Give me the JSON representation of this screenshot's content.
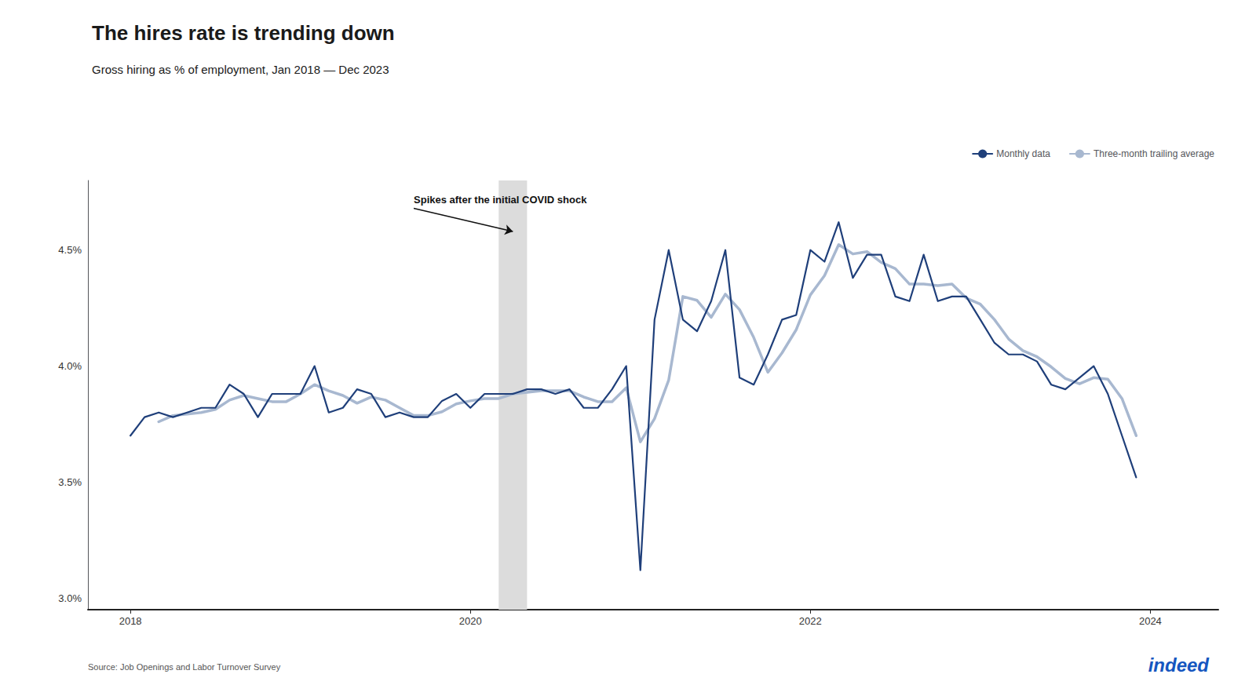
{
  "chart_data": {
    "type": "line",
    "title": "The hires rate is trending down",
    "subtitle": "Gross hiring as % of employment, Jan 2018 — Dec 2023",
    "source": "Source: Job Openings and Labor Turnover Survey",
    "logo": "indeed",
    "logo_color": "#1556C0",
    "x": [
      2018.0,
      2018.0833333333333,
      2018.1666666666667,
      2018.25,
      2018.3333333333333,
      2018.4166666666667,
      2018.5,
      2018.5833333333333,
      2018.6666666666667,
      2018.75,
      2018.8333333333333,
      2018.9166666666667,
      2019.0,
      2019.0833333333333,
      2019.1666666666667,
      2019.25,
      2019.3333333333333,
      2019.4166666666667,
      2019.5,
      2019.5833333333333,
      2019.6666666666667,
      2019.75,
      2019.8333333333333,
      2019.9166666666667,
      2020.0,
      2020.0833333333333,
      2020.1666666666667,
      2020.25,
      2020.3333333333333,
      2020.4166666666667,
      2020.5,
      2020.5833333333333,
      2020.6666666666667,
      2020.75,
      2020.8333333333333,
      2020.9166666666667,
      2021.0,
      2021.0833333333333,
      2021.1666666666667,
      2021.25,
      2021.3333333333333,
      2021.4166666666667,
      2021.5,
      2021.5833333333333,
      2021.6666666666667,
      2021.75,
      2021.8333333333333,
      2021.9166666666667,
      2022.0,
      2022.0833333333333,
      2022.1666666666667,
      2022.25,
      2022.3333333333333,
      2022.4166666666667,
      2022.5,
      2022.5833333333333,
      2022.6666666666667,
      2022.75,
      2022.8333333333333,
      2022.9166666666667,
      2023.0,
      2023.0833333333333,
      2023.1666666666667,
      2023.25,
      2023.3333333333333,
      2023.4166666666667,
      2023.5,
      2023.5833333333333,
      2023.6666666666667,
      2023.75,
      2023.8333333333333,
      2023.9166666666667
    ],
    "series": [
      {
        "name": "Monthly data",
        "color": "#1F3F7A",
        "values": [
          3.7,
          3.78,
          3.8,
          3.78,
          3.8,
          3.82,
          3.82,
          3.92,
          3.88,
          3.78,
          3.88,
          3.88,
          3.88,
          4.0,
          3.8,
          3.82,
          3.9,
          3.88,
          3.78,
          3.8,
          3.78,
          3.78,
          3.85,
          3.88,
          3.82,
          3.88,
          3.88,
          3.88,
          3.9,
          3.9,
          3.88,
          3.9,
          3.82,
          3.82,
          3.9,
          4.0,
          3.12,
          4.2,
          4.5,
          4.2,
          4.15,
          4.28,
          4.5,
          3.95,
          3.92,
          4.05,
          4.2,
          4.22,
          4.5,
          4.45,
          4.62,
          4.38,
          4.48,
          4.48,
          4.3,
          4.28,
          4.48,
          4.28,
          4.3,
          4.3,
          4.2,
          4.1,
          4.05,
          4.05,
          4.02,
          3.92,
          3.9,
          3.95,
          4.0,
          3.88,
          3.7,
          3.52
        ]
      },
      {
        "name": "Three-month trailing average",
        "color": "#A8B8D0",
        "values": [
          null,
          null,
          3.76,
          3.7866666666666666,
          3.7933333333333334,
          3.8,
          3.8133333333333335,
          3.8533333333333335,
          3.8733333333333335,
          3.86,
          3.8466666666666667,
          3.8466666666666667,
          3.88,
          3.92,
          3.8933333333333335,
          3.8733333333333335,
          3.84,
          3.8666666666666667,
          3.8533333333333335,
          3.82,
          3.7866666666666666,
          3.7866666666666666,
          3.8033333333333332,
          3.836666666666667,
          3.85,
          3.86,
          3.86,
          3.88,
          3.8866666666666667,
          3.8933333333333335,
          3.8933333333333335,
          3.8933333333333335,
          3.8666666666666667,
          3.8466666666666667,
          3.8466666666666667,
          3.9066666666666667,
          3.6733333333333333,
          3.7733333333333334,
          3.94,
          4.3,
          4.283333333333333,
          4.21,
          4.31,
          4.243333333333333,
          4.123333333333333,
          3.9733333333333336,
          4.056666666666667,
          4.156666666666667,
          4.306666666666667,
          4.39,
          4.523333333333333,
          4.483333333333333,
          4.493333333333333,
          4.446666666666667,
          4.42,
          4.353333333333333,
          4.353333333333333,
          4.346666666666667,
          4.353333333333333,
          4.293333333333333,
          4.266666666666667,
          4.2,
          4.116666666666667,
          4.066666666666667,
          4.04,
          3.9966666666666666,
          3.9466666666666668,
          3.9233333333333333,
          3.95,
          3.9433333333333334,
          3.86,
          3.7
        ]
      }
    ],
    "xlim": [
      2017.75,
      2024.4
    ],
    "xticks": [
      2018,
      2020,
      2022,
      2024
    ],
    "ylim": [
      2.95,
      4.8
    ],
    "yticks": [
      {
        "value": 3.0,
        "label": "3.0%"
      },
      {
        "value": 3.5,
        "label": "3.5%"
      },
      {
        "value": 4.0,
        "label": "4.0%"
      },
      {
        "value": 4.5,
        "label": "4.5%"
      }
    ],
    "grid": false,
    "legend": "upper right",
    "shaded_region": {
      "start": 2020.1666666666667,
      "end": 2020.3333333333333,
      "color": "#DCDCDC"
    },
    "annotations": [
      {
        "text": "Spikes after the initial COVID shock",
        "x": 2020.25,
        "y": 4.58,
        "text_x": 2019.6666666666667,
        "text_y": 4.68
      }
    ]
  }
}
